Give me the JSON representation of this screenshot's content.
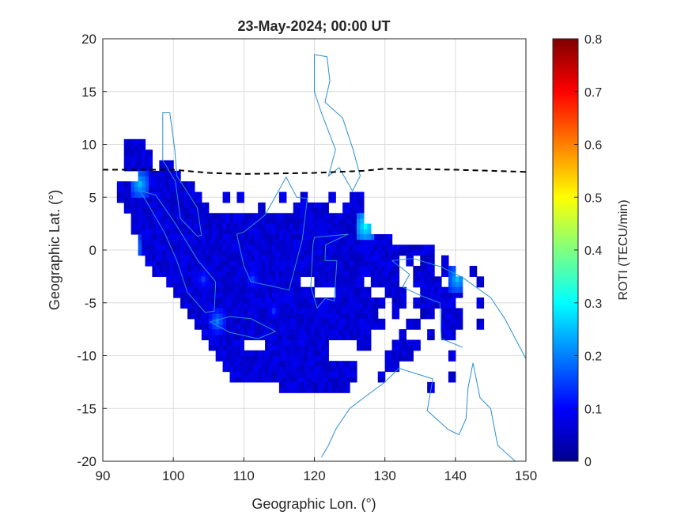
{
  "chart_data": {
    "type": "heatmap",
    "title": "23-May-2024; 00:00 UT",
    "xlabel": "Geographic Lon. (°)",
    "ylabel": "Geographic Lat. (°)",
    "xlim": [
      90,
      150
    ],
    "ylim": [
      -20,
      20
    ],
    "xticks": [
      "90",
      "100",
      "110",
      "120",
      "130",
      "140",
      "150"
    ],
    "yticks": [
      "20",
      "15",
      "10",
      "5",
      "0",
      "-5",
      "-10",
      "-15",
      "-20"
    ],
    "grid": true,
    "colormap": "jet",
    "colorbar": {
      "label": "ROTI (TECU/min)",
      "range": [
        0,
        0.8
      ],
      "ticks": [
        "0",
        "0.1",
        "0.2",
        "0.3",
        "0.4",
        "0.5",
        "0.6",
        "0.7",
        "0.8"
      ]
    },
    "base_roti": 0.07,
    "coverage_rows": [
      {
        "lat": 10,
        "lon": [
          [
            93,
            96
          ]
        ]
      },
      {
        "lat": 9,
        "lon": [
          [
            93,
            97
          ]
        ]
      },
      {
        "lat": 8,
        "lon": [
          [
            93,
            97
          ],
          [
            98,
            100
          ]
        ]
      },
      {
        "lat": 7,
        "lon": [
          [
            95,
            101
          ]
        ]
      },
      {
        "lat": 6,
        "lon": [
          [
            92,
            103
          ]
        ]
      },
      {
        "lat": 5,
        "lon": [
          [
            92,
            104
          ],
          [
            107,
            108
          ],
          [
            109,
            110
          ],
          [
            115,
            116
          ],
          [
            118,
            119
          ],
          [
            122,
            123
          ],
          [
            125,
            127
          ]
        ]
      },
      {
        "lat": 4,
        "lon": [
          [
            93,
            105
          ],
          [
            112,
            113
          ],
          [
            117,
            122
          ],
          [
            124,
            127
          ]
        ]
      },
      {
        "lat": 3,
        "lon": [
          [
            94,
            127
          ]
        ]
      },
      {
        "lat": 2,
        "lon": [
          [
            94,
            128
          ]
        ]
      },
      {
        "lat": 1,
        "lon": [
          [
            95,
            131
          ]
        ]
      },
      {
        "lat": 0,
        "lon": [
          [
            95,
            137
          ]
        ]
      },
      {
        "lat": -1,
        "lon": [
          [
            96,
            132
          ],
          [
            133,
            134
          ],
          [
            135,
            137
          ],
          [
            138,
            139
          ]
        ]
      },
      {
        "lat": -2,
        "lon": [
          [
            97,
            132
          ],
          [
            134,
            137
          ],
          [
            138,
            140
          ],
          [
            142,
            143
          ]
        ]
      },
      {
        "lat": -3,
        "lon": [
          [
            99,
            118
          ],
          [
            120,
            127
          ],
          [
            128,
            132
          ],
          [
            134,
            138
          ],
          [
            139,
            141
          ],
          [
            143,
            144
          ]
        ]
      },
      {
        "lat": -4,
        "lon": [
          [
            100,
            120
          ],
          [
            123,
            128
          ],
          [
            130,
            133
          ],
          [
            135,
            141
          ]
        ]
      },
      {
        "lat": -5,
        "lon": [
          [
            101,
            130
          ],
          [
            131,
            133
          ],
          [
            134,
            140
          ],
          [
            143,
            144
          ]
        ]
      },
      {
        "lat": -6,
        "lon": [
          [
            102,
            129
          ],
          [
            131,
            132
          ],
          [
            135,
            137
          ],
          [
            138,
            141
          ]
        ]
      },
      {
        "lat": -7,
        "lon": [
          [
            103,
            130
          ],
          [
            133,
            135
          ],
          [
            138,
            141
          ],
          [
            143,
            144
          ]
        ]
      },
      {
        "lat": -8,
        "lon": [
          [
            104,
            128
          ],
          [
            132,
            133
          ],
          [
            136,
            137
          ],
          [
            138,
            140
          ]
        ]
      },
      {
        "lat": -9,
        "lon": [
          [
            105,
            110
          ],
          [
            113,
            122
          ],
          [
            126,
            128
          ],
          [
            131,
            135
          ]
        ]
      },
      {
        "lat": -10,
        "lon": [
          [
            106,
            122
          ],
          [
            130,
            134
          ],
          [
            139,
            140
          ]
        ]
      },
      {
        "lat": -11,
        "lon": [
          [
            107,
            126
          ],
          [
            130,
            132
          ]
        ]
      },
      {
        "lat": -12,
        "lon": [
          [
            108,
            126
          ],
          [
            129,
            130
          ],
          [
            139,
            140
          ]
        ]
      },
      {
        "lat": -13,
        "lon": [
          [
            115,
            125
          ],
          [
            136,
            137
          ]
        ]
      }
    ],
    "hotspots": [
      {
        "lon": 95,
        "lat": 6,
        "roti": 0.25
      },
      {
        "lon": 94,
        "lat": 0,
        "roti": 0.25
      },
      {
        "lon": 127,
        "lat": 2,
        "roti": 0.3
      },
      {
        "lon": 140,
        "lat": -3,
        "roti": 0.25
      },
      {
        "lon": 106,
        "lat": -7,
        "roti": 0.2
      },
      {
        "lon": 104,
        "lat": -3,
        "roti": 0.15
      },
      {
        "lon": 111,
        "lat": -3,
        "roti": 0.15
      },
      {
        "lon": 114,
        "lat": -6,
        "roti": 0.14
      }
    ],
    "dip_equator": {
      "lon": [
        90,
        100,
        105,
        110,
        120,
        127,
        130,
        140,
        150
      ],
      "lat": [
        7.6,
        7.6,
        7.3,
        7.2,
        7.3,
        7.5,
        7.7,
        7.6,
        7.4
      ]
    }
  }
}
